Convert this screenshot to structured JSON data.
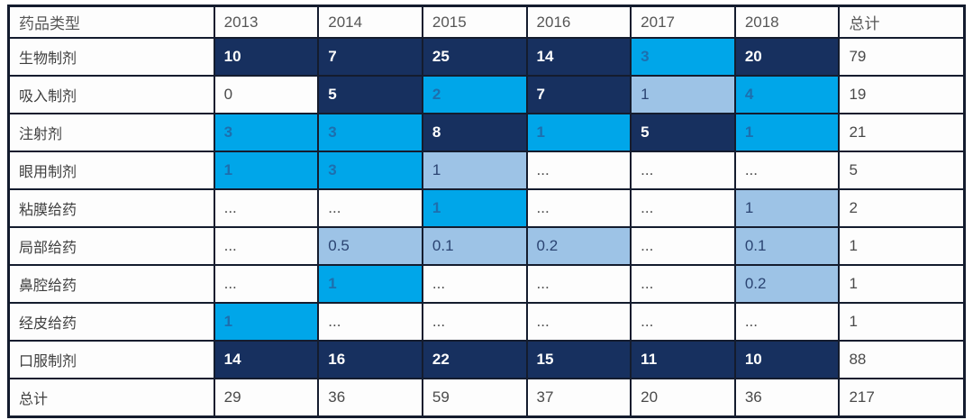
{
  "table": {
    "name": "drug-type-by-year-table",
    "columns": [
      "药品类型",
      "2013",
      "2014",
      "2015",
      "2016",
      "2017",
      "2018",
      "总计"
    ],
    "rows": [
      {
        "label": "生物制剂",
        "cells": [
          {
            "v": "10",
            "s": "navy"
          },
          {
            "v": "7",
            "s": "navy"
          },
          {
            "v": "25",
            "s": "navy"
          },
          {
            "v": "14",
            "s": "navy"
          },
          {
            "v": "3",
            "s": "cyan"
          },
          {
            "v": "20",
            "s": "navy"
          }
        ],
        "total": "79"
      },
      {
        "label": "吸入制剂",
        "cells": [
          {
            "v": "0",
            "s": "none"
          },
          {
            "v": "5",
            "s": "navy"
          },
          {
            "v": "2",
            "s": "cyan"
          },
          {
            "v": "7",
            "s": "navy"
          },
          {
            "v": "1",
            "s": "light"
          },
          {
            "v": "4",
            "s": "cyan"
          }
        ],
        "total": "19"
      },
      {
        "label": "注射剂",
        "cells": [
          {
            "v": "3",
            "s": "cyan"
          },
          {
            "v": "3",
            "s": "cyan"
          },
          {
            "v": "8",
            "s": "navy"
          },
          {
            "v": "1",
            "s": "cyan"
          },
          {
            "v": "5",
            "s": "navy"
          },
          {
            "v": "1",
            "s": "cyan"
          }
        ],
        "total": "21"
      },
      {
        "label": "眼用制剂",
        "cells": [
          {
            "v": "1",
            "s": "cyan"
          },
          {
            "v": "3",
            "s": "cyan"
          },
          {
            "v": "1",
            "s": "light"
          },
          {
            "v": "...",
            "s": "none"
          },
          {
            "v": "...",
            "s": "none"
          },
          {
            "v": "...",
            "s": "none"
          }
        ],
        "total": "5"
      },
      {
        "label": "粘膜给药",
        "cells": [
          {
            "v": "...",
            "s": "none"
          },
          {
            "v": "...",
            "s": "none"
          },
          {
            "v": "1",
            "s": "cyan"
          },
          {
            "v": "...",
            "s": "none"
          },
          {
            "v": "...",
            "s": "none"
          },
          {
            "v": "1",
            "s": "light"
          }
        ],
        "total": "2"
      },
      {
        "label": "局部给药",
        "cells": [
          {
            "v": "...",
            "s": "none"
          },
          {
            "v": "0.5",
            "s": "light"
          },
          {
            "v": "0.1",
            "s": "light"
          },
          {
            "v": "0.2",
            "s": "light"
          },
          {
            "v": "...",
            "s": "none"
          },
          {
            "v": "0.1",
            "s": "light"
          }
        ],
        "total": "1"
      },
      {
        "label": "鼻腔给药",
        "cells": [
          {
            "v": "...",
            "s": "none"
          },
          {
            "v": "1",
            "s": "cyan"
          },
          {
            "v": "...",
            "s": "none"
          },
          {
            "v": "...",
            "s": "none"
          },
          {
            "v": "...",
            "s": "none"
          },
          {
            "v": "0.2",
            "s": "light"
          }
        ],
        "total": "1"
      },
      {
        "label": "经皮给药",
        "cells": [
          {
            "v": "1",
            "s": "cyan"
          },
          {
            "v": "...",
            "s": "none"
          },
          {
            "v": "...",
            "s": "none"
          },
          {
            "v": "...",
            "s": "none"
          },
          {
            "v": "...",
            "s": "none"
          },
          {
            "v": "...",
            "s": "none"
          }
        ],
        "total": "1"
      },
      {
        "label": "口服制剂",
        "cells": [
          {
            "v": "14",
            "s": "navy"
          },
          {
            "v": "16",
            "s": "navy"
          },
          {
            "v": "22",
            "s": "navy"
          },
          {
            "v": "15",
            "s": "navy"
          },
          {
            "v": "11",
            "s": "navy"
          },
          {
            "v": "10",
            "s": "navy"
          }
        ],
        "total": "88"
      },
      {
        "label": "总计",
        "cells": [
          {
            "v": "29",
            "s": "none"
          },
          {
            "v": "36",
            "s": "none"
          },
          {
            "v": "59",
            "s": "none"
          },
          {
            "v": "37",
            "s": "none"
          },
          {
            "v": "20",
            "s": "none"
          },
          {
            "v": "36",
            "s": "none"
          }
        ],
        "total": "217"
      }
    ]
  },
  "colors": {
    "heat_high_navy": "#17305f",
    "heat_mid_cyan": "#00a6e9",
    "heat_low_lightblue": "#9dc3e6",
    "grid_border": "#141c2e",
    "header_text": "#565656",
    "body_text": "#4a4a4a"
  }
}
